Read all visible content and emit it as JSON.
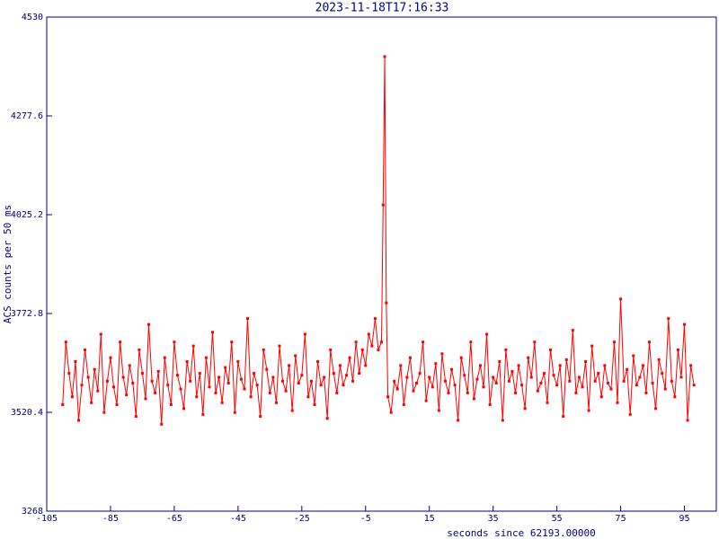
{
  "chart_data": {
    "type": "line",
    "title": "2023-11-18T17:16:33",
    "xlabel": "seconds since 62193.00000",
    "ylabel": "ACS counts per 50 ms",
    "xlim": [
      -105,
      105
    ],
    "ylim": [
      3268,
      4530
    ],
    "xticks": [
      -105,
      -85,
      -65,
      -45,
      -25,
      -5,
      15,
      35,
      55,
      75,
      95
    ],
    "yticks": [
      3268,
      3520.4,
      3772.8,
      4025.2,
      4277.6,
      4530
    ],
    "grid": false,
    "markers": true,
    "x": [
      -100,
      -99,
      -98,
      -97,
      -96,
      -95,
      -94,
      -93,
      -92,
      -91,
      -90,
      -89,
      -88,
      -87,
      -86,
      -85,
      -84,
      -83,
      -82,
      -81,
      -80,
      -79,
      -78,
      -77,
      -76,
      -75,
      -74,
      -73,
      -72,
      -71,
      -70,
      -69,
      -68,
      -67,
      -66,
      -65,
      -64,
      -63,
      -62,
      -61,
      -60,
      -59,
      -58,
      -57,
      -56,
      -55,
      -54,
      -53,
      -52,
      -51,
      -50,
      -49,
      -48,
      -47,
      -46,
      -45,
      -44,
      -43,
      -42,
      -41,
      -40,
      -39,
      -38,
      -37,
      -36,
      -35,
      -34,
      -33,
      -32,
      -31,
      -30,
      -29,
      -28,
      -27,
      -26,
      -25,
      -24,
      -23,
      -22,
      -21,
      -20,
      -19,
      -18,
      -17,
      -16,
      -15,
      -14,
      -13,
      -12,
      -11,
      -10,
      -9,
      -8,
      -7,
      -6,
      -5,
      -4,
      -3,
      -2,
      -1,
      0,
      0.5,
      1,
      1.5,
      2,
      3,
      4,
      5,
      6,
      7,
      8,
      9,
      10,
      11,
      12,
      13,
      14,
      15,
      16,
      17,
      18,
      19,
      20,
      21,
      22,
      23,
      24,
      25,
      26,
      27,
      28,
      29,
      30,
      31,
      32,
      33,
      34,
      35,
      36,
      37,
      38,
      39,
      40,
      41,
      42,
      43,
      44,
      45,
      46,
      47,
      48,
      49,
      50,
      51,
      52,
      53,
      54,
      55,
      56,
      57,
      58,
      59,
      60,
      61,
      62,
      63,
      64,
      65,
      66,
      67,
      68,
      69,
      70,
      71,
      72,
      73,
      74,
      75,
      76,
      77,
      78,
      79,
      80,
      81,
      82,
      83,
      84,
      85,
      86,
      87,
      88,
      89,
      90,
      91,
      92,
      93,
      94,
      95,
      96,
      97,
      98
    ],
    "series": [
      {
        "color": "#ff0000",
        "values": [
          3540,
          3700,
          3620,
          3560,
          3650,
          3500,
          3590,
          3680,
          3610,
          3545,
          3630,
          3575,
          3720,
          3520,
          3600,
          3660,
          3585,
          3540,
          3700,
          3610,
          3565,
          3640,
          3595,
          3510,
          3680,
          3620,
          3555,
          3745,
          3600,
          3570,
          3625,
          3490,
          3660,
          3590,
          3540,
          3700,
          3615,
          3580,
          3530,
          3650,
          3600,
          3690,
          3560,
          3620,
          3515,
          3660,
          3585,
          3725,
          3570,
          3610,
          3545,
          3635,
          3595,
          3700,
          3520,
          3650,
          3605,
          3580,
          3760,
          3560,
          3620,
          3590,
          3510,
          3680,
          3630,
          3570,
          3610,
          3545,
          3690,
          3600,
          3575,
          3640,
          3525,
          3665,
          3595,
          3615,
          3720,
          3560,
          3600,
          3540,
          3650,
          3590,
          3610,
          3505,
          3680,
          3620,
          3570,
          3640,
          3590,
          3615,
          3660,
          3600,
          3700,
          3620,
          3680,
          3640,
          3720,
          3690,
          3760,
          3680,
          3700,
          4050,
          4429,
          3800,
          3560,
          3520,
          3600,
          3580,
          3640,
          3540,
          3610,
          3660,
          3575,
          3595,
          3620,
          3700,
          3550,
          3610,
          3585,
          3645,
          3525,
          3670,
          3600,
          3570,
          3630,
          3590,
          3500,
          3660,
          3615,
          3570,
          3700,
          3555,
          3605,
          3640,
          3585,
          3720,
          3540,
          3610,
          3595,
          3650,
          3500,
          3680,
          3600,
          3625,
          3570,
          3640,
          3590,
          3530,
          3660,
          3610,
          3700,
          3575,
          3595,
          3620,
          3545,
          3680,
          3615,
          3590,
          3640,
          3510,
          3655,
          3600,
          3730,
          3570,
          3610,
          3585,
          3650,
          3525,
          3690,
          3600,
          3620,
          3560,
          3640,
          3595,
          3580,
          3700,
          3545,
          3810,
          3600,
          3630,
          3515,
          3665,
          3590,
          3610,
          3640,
          3570,
          3700,
          3595,
          3530,
          3655,
          3620,
          3580,
          3760,
          3600,
          3560,
          3680,
          3610,
          3745,
          3500,
          3640,
          3590
        ]
      }
    ]
  }
}
